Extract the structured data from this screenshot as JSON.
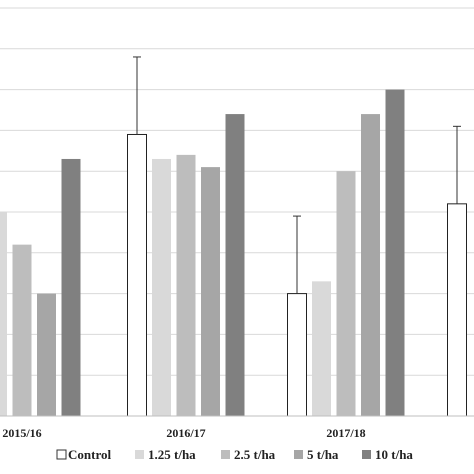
{
  "chart_data": {
    "type": "bar",
    "categories": [
      "2015/16",
      "2016/17",
      "2017/18",
      ""
    ],
    "series": [
      {
        "name": "Control",
        "color": "#ffffff",
        "values": [
          null,
          6.9,
          3.0,
          5.2
        ],
        "error": [
          null,
          1.9,
          1.9,
          1.9
        ]
      },
      {
        "name": "1.25 t/ha",
        "color": "#d9d9d9",
        "values": [
          5.0,
          6.3,
          3.3,
          null
        ],
        "error": [
          null,
          null,
          null,
          null
        ]
      },
      {
        "name": "2.5 t/ha",
        "color": "#bdbdbd",
        "values": [
          4.2,
          6.4,
          6.0,
          null
        ],
        "error": [
          null,
          null,
          null,
          null
        ]
      },
      {
        "name": "5 t/ha",
        "color": "#a6a6a6",
        "values": [
          3.0,
          6.1,
          7.4,
          null
        ],
        "error": [
          null,
          null,
          null,
          null
        ]
      },
      {
        "name": "10 t/ha",
        "color": "#808080",
        "values": [
          6.3,
          7.4,
          8.0,
          null
        ],
        "error": [
          null,
          null,
          null,
          null
        ]
      }
    ],
    "ylim": [
      0,
      10
    ],
    "grid": true,
    "legend": "bottom"
  }
}
